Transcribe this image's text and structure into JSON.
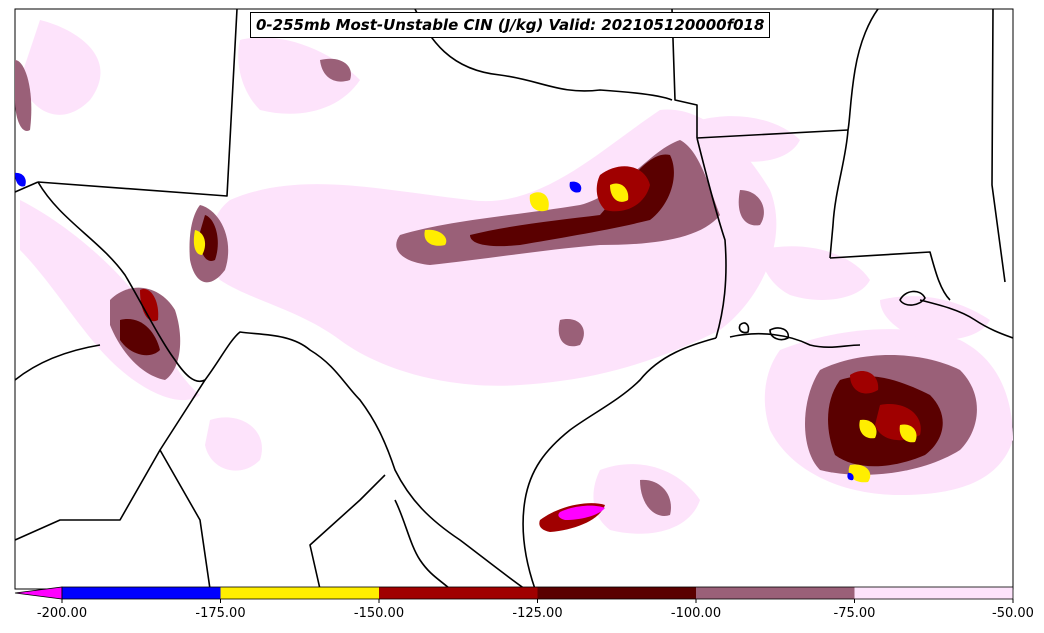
{
  "title": "0-255mb Most-Unstable CIN (J/kg) Valid: 202105120000f018",
  "colorbar": {
    "tick_labels": [
      "-200.00",
      "-175.00",
      "-150.00",
      "-125.00",
      "-100.00",
      "-75.00",
      "-50.00"
    ],
    "bins": [
      {
        "range": [
          -200,
          -175
        ],
        "color": "#0000ff"
      },
      {
        "range": [
          -175,
          -150
        ],
        "color": "#ffee00"
      },
      {
        "range": [
          -150,
          -125
        ],
        "color": "#a00000"
      },
      {
        "range": [
          -125,
          -100
        ],
        "color": "#5a0000"
      },
      {
        "range": [
          -100,
          -75
        ],
        "color": "#9a6078"
      },
      {
        "range": [
          -75,
          -50
        ],
        "color": "#fde3fb"
      }
    ],
    "under_color": "#ff00ff"
  }
}
